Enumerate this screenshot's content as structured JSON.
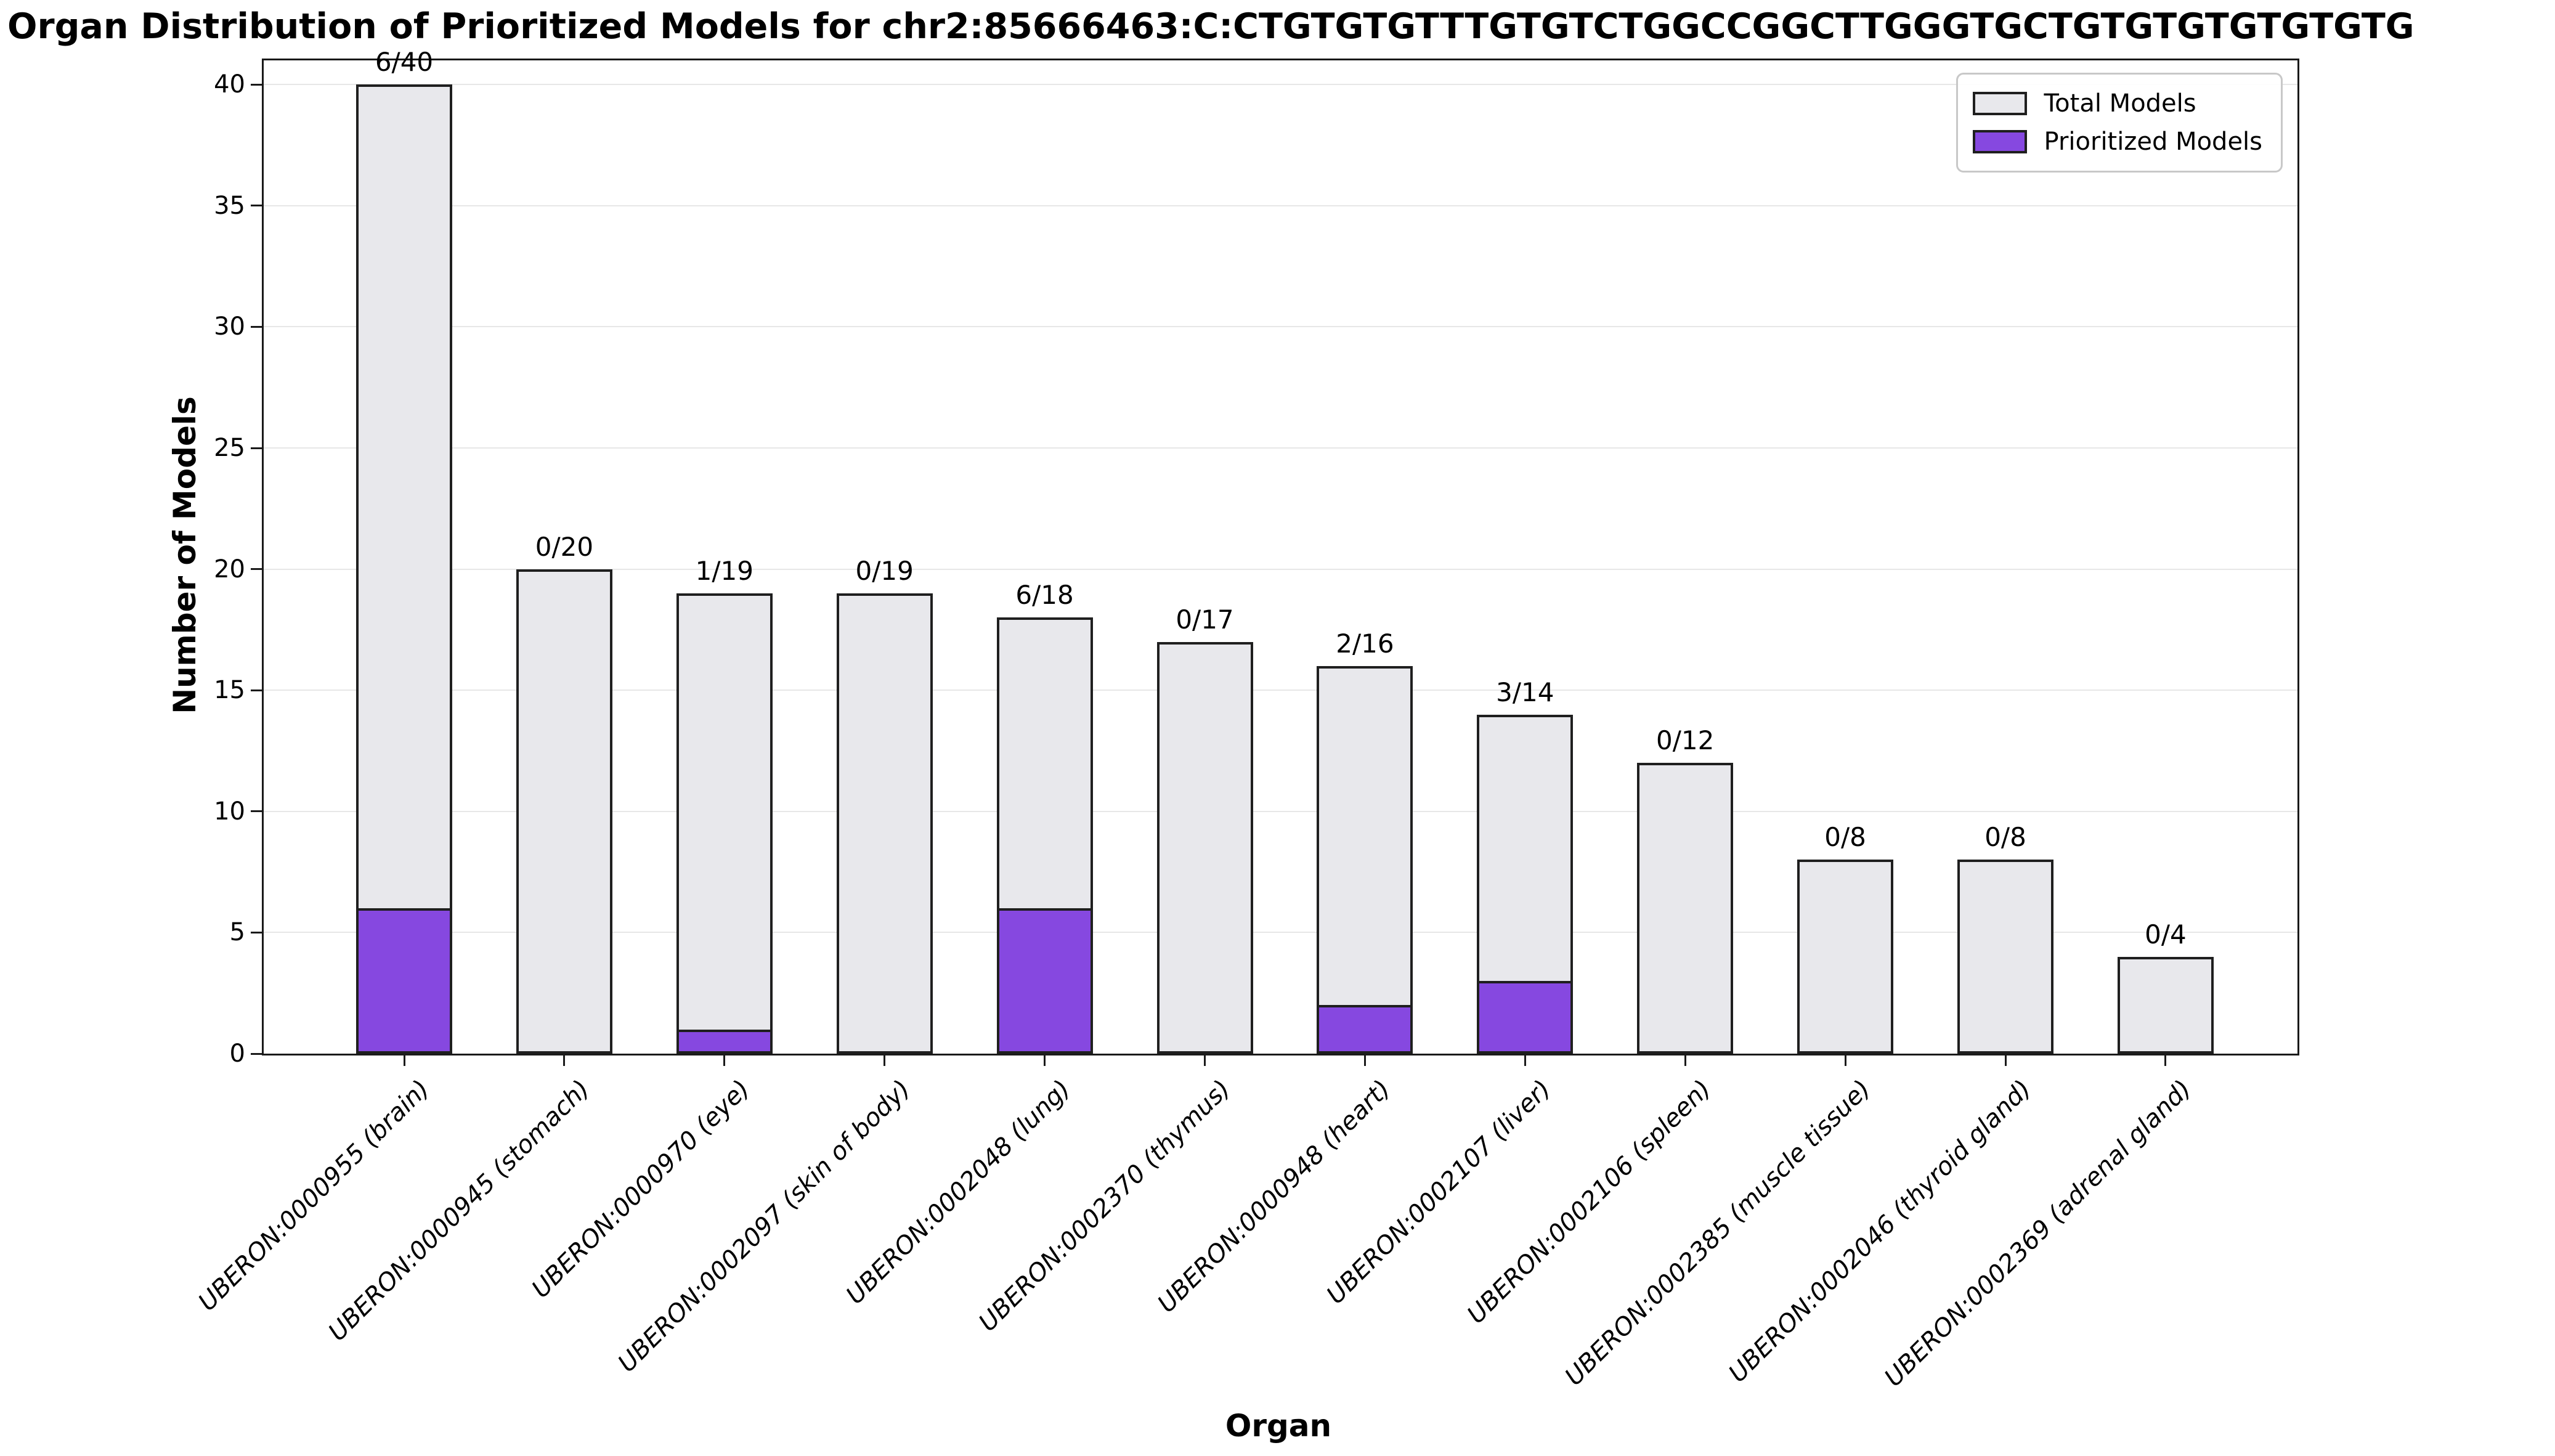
{
  "chart_data": {
    "type": "bar",
    "title": "Organ Distribution of Prioritized Models for chr2:85666463:C:CTGTGTGTTTGTGTCTGGCCGGCTTGGGTGCTGTGTGTGTGTGTG",
    "xlabel": "Organ",
    "ylabel": "Number of Models",
    "ylim": [
      0,
      41
    ],
    "yticks": [
      0,
      5,
      10,
      15,
      20,
      25,
      30,
      35,
      40
    ],
    "grid": "horizontal-light",
    "legend_position": "upper-right-inside",
    "categories": [
      "UBERON:0000955 (brain)",
      "UBERON:0000945 (stomach)",
      "UBERON:0000970 (eye)",
      "UBERON:0002097 (skin of body)",
      "UBERON:0002048 (lung)",
      "UBERON:0002370 (thymus)",
      "UBERON:0000948 (heart)",
      "UBERON:0002107 (liver)",
      "UBERON:0002106 (spleen)",
      "UBERON:0002385 (muscle tissue)",
      "UBERON:0002046 (thyroid gland)",
      "UBERON:0002369 (adrenal gland)"
    ],
    "series": [
      {
        "name": "Total Models",
        "values": [
          40,
          20,
          19,
          19,
          18,
          17,
          16,
          14,
          12,
          8,
          8,
          4
        ],
        "color": "#e8e8ec"
      },
      {
        "name": "Prioritized Models",
        "values": [
          6,
          0,
          1,
          0,
          6,
          0,
          2,
          3,
          0,
          0,
          0,
          0
        ],
        "color": "#8648e0"
      }
    ],
    "bar_labels": [
      "6/40",
      "0/20",
      "1/19",
      "0/19",
      "6/18",
      "0/17",
      "2/16",
      "3/14",
      "0/12",
      "0/8",
      "0/8",
      "0/4"
    ],
    "colors": {
      "bar_edge": "#1f1f1f",
      "axis": "#1a1a1a",
      "grid": "#e7e7e7",
      "background": "#ffffff",
      "text": "#000000",
      "legend_border": "#c8c8c8"
    }
  }
}
